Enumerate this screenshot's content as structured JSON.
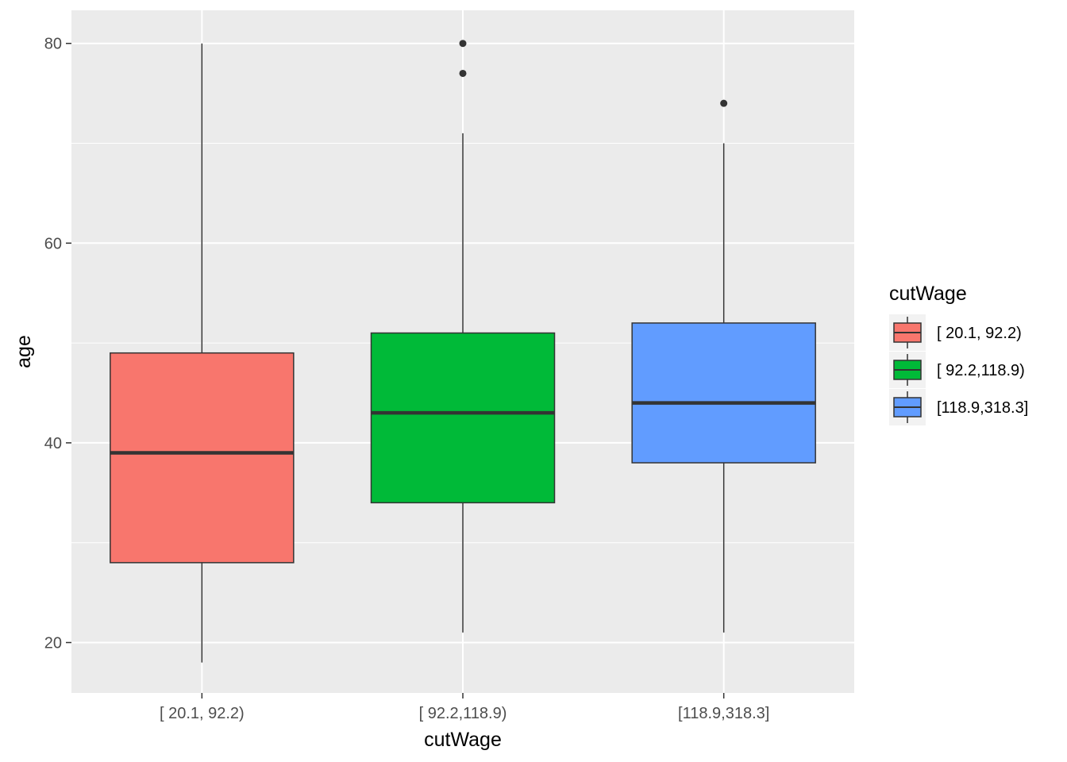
{
  "chart_data": {
    "type": "boxplot",
    "xlabel": "cutWage",
    "ylabel": "age",
    "categories": [
      "[ 20.1, 92.2)",
      "[ 92.2,118.9)",
      "[118.9,318.3]"
    ],
    "ylim": [
      15,
      83
    ],
    "y_ticks": [
      20,
      40,
      60,
      80
    ],
    "grid": true,
    "legend": {
      "title": "cutWage",
      "position": "right",
      "entries": [
        "[ 20.1, 92.2)",
        "[ 92.2,118.9)",
        "[118.9,318.3]"
      ]
    },
    "colors": [
      "#F8766D",
      "#00BA38",
      "#619CFF"
    ],
    "boxes": [
      {
        "category": "[ 20.1, 92.2)",
        "whisker_low": 18,
        "q1": 28,
        "median": 39,
        "q3": 49,
        "whisker_high": 80,
        "outliers": []
      },
      {
        "category": "[ 92.2,118.9)",
        "whisker_low": 21,
        "q1": 34,
        "median": 43,
        "q3": 51,
        "whisker_high": 71,
        "outliers": [
          77,
          80
        ]
      },
      {
        "category": "[118.9,318.3]",
        "whisker_low": 21,
        "q1": 38,
        "median": 44,
        "q3": 52,
        "whisker_high": 70,
        "outliers": [
          74
        ]
      }
    ]
  }
}
